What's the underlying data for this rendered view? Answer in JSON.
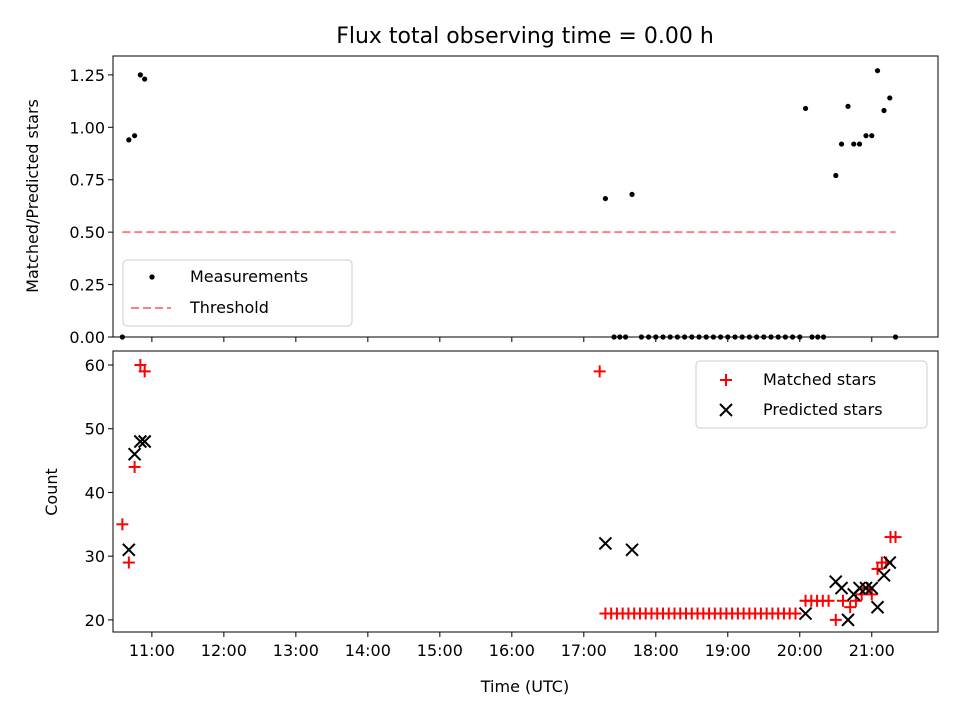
{
  "chart_data": [
    {
      "type": "scatter",
      "title": "Flux total observing time = 0.00 h",
      "xlabel": "",
      "ylabel": "Matched/Predicted stars",
      "ylim": [
        0,
        1.34
      ],
      "yticks": [
        0,
        0.25,
        0.5,
        0.75,
        1.0,
        1.25
      ],
      "ytick_labels": [
        "0.00",
        "0.25",
        "0.50",
        "0.75",
        "1.00",
        "1.25"
      ],
      "legend_position": "lower-left",
      "series": [
        {
          "name": "Measurements",
          "color": "#000000",
          "marker": "dot",
          "x": [
            10.59,
            10.68,
            10.76,
            10.84,
            10.9,
            17.3,
            17.42,
            17.5,
            17.58,
            17.67,
            17.8,
            17.9,
            18.0,
            18.1,
            18.2,
            18.3,
            18.4,
            18.5,
            18.6,
            18.7,
            18.8,
            18.9,
            19.0,
            19.1,
            19.2,
            19.3,
            19.4,
            19.5,
            19.6,
            19.7,
            19.8,
            19.9,
            20.0,
            20.08,
            20.17,
            20.25,
            20.33,
            20.5,
            20.58,
            20.67,
            20.75,
            20.83,
            20.92,
            21.0,
            21.08,
            21.17,
            21.25,
            21.33
          ],
          "y": [
            0.0,
            0.94,
            0.96,
            1.25,
            1.23,
            0.66,
            0.0,
            0.0,
            0.0,
            0.68,
            0.0,
            0.0,
            0.0,
            0.0,
            0.0,
            0.0,
            0.0,
            0.0,
            0.0,
            0.0,
            0.0,
            0.0,
            0.0,
            0.0,
            0.0,
            0.0,
            0.0,
            0.0,
            0.0,
            0.0,
            0.0,
            0.0,
            0.0,
            1.09,
            0.0,
            0.0,
            0.0,
            0.77,
            0.92,
            1.1,
            0.92,
            0.92,
            0.96,
            0.96,
            1.27,
            1.08,
            1.14,
            0.0
          ]
        },
        {
          "name": "Threshold",
          "color": "#ff7f7f",
          "style": "dashed",
          "x": [
            10.59,
            21.33
          ],
          "y": [
            0.5,
            0.5
          ]
        }
      ]
    },
    {
      "type": "scatter",
      "title": "",
      "xlabel": "Time (UTC)",
      "ylabel": "Count",
      "ylim": [
        18.1,
        62.2
      ],
      "yticks": [
        20,
        30,
        40,
        50,
        60
      ],
      "ytick_labels": [
        "20",
        "30",
        "40",
        "50",
        "60"
      ],
      "xlim": [
        10.46,
        21.92
      ],
      "xticks": [
        11,
        12,
        13,
        14,
        15,
        16,
        17,
        18,
        19,
        20,
        21
      ],
      "xtick_labels": [
        "11:00",
        "12:00",
        "13:00",
        "14:00",
        "15:00",
        "16:00",
        "17:00",
        "18:00",
        "19:00",
        "20:00",
        "21:00"
      ],
      "legend_position": "top-right",
      "series": [
        {
          "name": "Matched stars",
          "color": "#ff0000",
          "marker": "plus",
          "x": [
            10.59,
            10.68,
            10.76,
            10.84,
            10.9,
            17.22,
            17.3,
            17.38,
            17.46,
            17.54,
            17.62,
            17.7,
            17.78,
            17.86,
            17.94,
            18.02,
            18.1,
            18.18,
            18.26,
            18.34,
            18.42,
            18.5,
            18.58,
            18.66,
            18.74,
            18.82,
            18.9,
            18.98,
            19.06,
            19.14,
            19.22,
            19.3,
            19.38,
            19.46,
            19.54,
            19.62,
            19.7,
            19.78,
            19.86,
            19.94,
            20.08,
            20.16,
            20.24,
            20.32,
            20.4,
            20.5,
            20.6,
            20.7,
            20.78,
            20.86,
            20.94,
            21.0,
            21.08,
            21.14,
            21.2,
            21.26,
            21.33
          ],
          "y": [
            35,
            29,
            44,
            60,
            59,
            59,
            21,
            21,
            21,
            21,
            21,
            21,
            21,
            21,
            21,
            21,
            21,
            21,
            21,
            21,
            21,
            21,
            21,
            21,
            21,
            21,
            21,
            21,
            21,
            21,
            21,
            21,
            21,
            21,
            21,
            21,
            21,
            21,
            21,
            21,
            23,
            23,
            23,
            23,
            23,
            20,
            23,
            22,
            23,
            24,
            25,
            24,
            28,
            29,
            29,
            33,
            33
          ]
        },
        {
          "name": "Predicted stars",
          "color": "#000000",
          "marker": "x",
          "x": [
            10.68,
            10.76,
            10.84,
            10.9,
            17.3,
            17.67,
            20.08,
            20.5,
            20.58,
            20.67,
            20.75,
            20.83,
            20.92,
            21.0,
            21.08,
            21.17,
            21.25
          ],
          "y": [
            31,
            46,
            48,
            48,
            32,
            31,
            21,
            26,
            25,
            20,
            24,
            25,
            25,
            25,
            22,
            27,
            29
          ]
        }
      ]
    }
  ]
}
